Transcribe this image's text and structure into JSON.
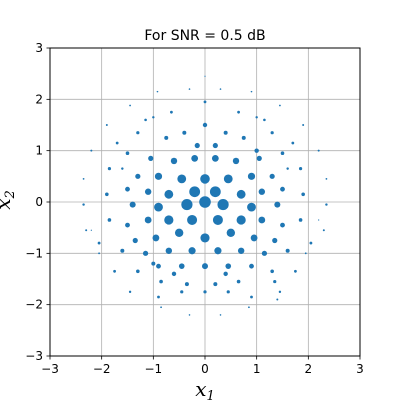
{
  "chart_data": {
    "type": "scatter",
    "title": "For SNR = 0.5 dB",
    "xlabel": "x",
    "xlabel_sub": "1",
    "ylabel": "x",
    "ylabel_sub": "2",
    "xlim": [
      -3,
      3
    ],
    "ylim": [
      -3,
      3
    ],
    "xticks": [
      -3,
      -2,
      -1,
      0,
      1,
      2,
      3
    ],
    "yticks": [
      -3,
      -2,
      -1,
      0,
      1,
      2,
      3
    ],
    "grid": true,
    "color": "#1f77b4",
    "points": [
      [
        0.0,
        2.45,
        0.6
      ],
      [
        -0.92,
        2.15,
        0.8
      ],
      [
        0.9,
        2.15,
        0.8
      ],
      [
        -1.45,
        1.88,
        0.9
      ],
      [
        1.45,
        1.88,
        0.9
      ],
      [
        -0.3,
        2.2,
        0.8
      ],
      [
        0.3,
        2.2,
        0.8
      ],
      [
        -1.9,
        1.5,
        1.0
      ],
      [
        1.9,
        1.5,
        1.0
      ],
      [
        -0.65,
        1.75,
        1.4
      ],
      [
        0.0,
        1.95,
        1.4
      ],
      [
        0.65,
        1.75,
        1.4
      ],
      [
        -1.15,
        1.6,
        1.3
      ],
      [
        1.15,
        1.6,
        1.3
      ],
      [
        -2.2,
        1.0,
        1.0
      ],
      [
        2.2,
        1.0,
        1.0
      ],
      [
        -1.7,
        1.15,
        1.4
      ],
      [
        1.7,
        1.15,
        1.4
      ],
      [
        -1.3,
        1.35,
        1.6
      ],
      [
        1.3,
        1.35,
        1.6
      ],
      [
        -1.0,
        1.65,
        1.2
      ],
      [
        1.0,
        1.65,
        1.2
      ],
      [
        -0.75,
        1.25,
        2.0
      ],
      [
        -0.4,
        1.35,
        2.0
      ],
      [
        0.0,
        1.5,
        2.2
      ],
      [
        0.4,
        1.35,
        2.0
      ],
      [
        0.75,
        1.25,
        2.0
      ],
      [
        -0.15,
        1.1,
        2.6
      ],
      [
        0.2,
        1.1,
        2.6
      ],
      [
        -2.35,
        0.45,
        0.9
      ],
      [
        2.35,
        0.45,
        0.9
      ],
      [
        -1.85,
        0.65,
        1.6
      ],
      [
        1.85,
        0.65,
        1.6
      ],
      [
        -1.5,
        0.95,
        1.8
      ],
      [
        1.5,
        0.95,
        1.8
      ],
      [
        -1.05,
        0.85,
        2.6
      ],
      [
        1.05,
        0.85,
        2.6
      ],
      [
        -0.6,
        0.8,
        3.2
      ],
      [
        -0.2,
        0.85,
        3.4
      ],
      [
        0.2,
        0.85,
        3.4
      ],
      [
        0.6,
        0.8,
        3.2
      ],
      [
        -0.9,
        0.5,
        3.6
      ],
      [
        -0.45,
        0.45,
        4.4
      ],
      [
        0.0,
        0.45,
        4.8
      ],
      [
        0.45,
        0.45,
        4.4
      ],
      [
        0.9,
        0.5,
        3.6
      ],
      [
        -1.3,
        0.5,
        2.6
      ],
      [
        1.3,
        0.5,
        2.6
      ],
      [
        1.0,
        1.0,
        2.2
      ],
      [
        -2.35,
        -0.05,
        1.2
      ],
      [
        2.35,
        -0.05,
        1.2
      ],
      [
        -1.9,
        0.15,
        1.8
      ],
      [
        1.9,
        0.15,
        1.8
      ],
      [
        -1.5,
        0.25,
        2.4
      ],
      [
        1.5,
        0.25,
        2.4
      ],
      [
        -1.1,
        0.2,
        3.2
      ],
      [
        1.1,
        0.2,
        3.2
      ],
      [
        -0.7,
        0.15,
        4.4
      ],
      [
        -0.2,
        0.2,
        5.4
      ],
      [
        0.2,
        0.2,
        5.4
      ],
      [
        0.7,
        0.15,
        4.4
      ],
      [
        -0.9,
        -0.1,
        4.4
      ],
      [
        -0.35,
        -0.05,
        5.6
      ],
      [
        0.0,
        0.0,
        5.8
      ],
      [
        0.35,
        -0.05,
        5.6
      ],
      [
        0.9,
        -0.1,
        4.4
      ],
      [
        1.4,
        -0.05,
        3.0
      ],
      [
        -1.4,
        -0.05,
        3.0
      ],
      [
        -2.3,
        -0.55,
        1.0
      ],
      [
        2.3,
        -0.55,
        1.0
      ],
      [
        -1.85,
        -0.35,
        1.8
      ],
      [
        1.85,
        -0.35,
        1.8
      ],
      [
        -1.5,
        -0.45,
        2.4
      ],
      [
        1.5,
        -0.45,
        2.4
      ],
      [
        -1.1,
        -0.35,
        3.4
      ],
      [
        1.1,
        -0.35,
        3.4
      ],
      [
        -0.7,
        -0.35,
        4.6
      ],
      [
        -0.25,
        -0.35,
        5.0
      ],
      [
        0.25,
        -0.35,
        5.0
      ],
      [
        0.7,
        -0.35,
        4.6
      ],
      [
        -0.5,
        -0.6,
        4.2
      ],
      [
        0.0,
        -0.7,
        4.6
      ],
      [
        0.5,
        -0.6,
        4.2
      ],
      [
        -0.95,
        -0.7,
        3.4
      ],
      [
        0.95,
        -0.7,
        3.4
      ],
      [
        -1.35,
        -0.75,
        2.6
      ],
      [
        1.35,
        -0.75,
        2.6
      ],
      [
        -2.05,
        -0.8,
        1.4
      ],
      [
        2.05,
        -0.8,
        1.4
      ],
      [
        -1.6,
        -0.95,
        2.0
      ],
      [
        1.6,
        -0.95,
        2.0
      ],
      [
        -1.15,
        -1.0,
        2.6
      ],
      [
        1.15,
        -1.0,
        2.6
      ],
      [
        -0.7,
        -0.95,
        3.2
      ],
      [
        -0.25,
        -0.95,
        3.6
      ],
      [
        0.25,
        -0.95,
        3.6
      ],
      [
        0.7,
        -0.95,
        3.2
      ],
      [
        -0.45,
        -1.25,
        2.8
      ],
      [
        0.0,
        -1.25,
        3.0
      ],
      [
        0.45,
        -1.25,
        2.8
      ],
      [
        -0.9,
        -1.25,
        2.4
      ],
      [
        0.9,
        -1.25,
        2.4
      ],
      [
        -2.05,
        -1.0,
        0.9
      ],
      [
        1.95,
        -1.0,
        0.9
      ],
      [
        -1.75,
        -1.35,
        1.4
      ],
      [
        1.75,
        -1.35,
        1.4
      ],
      [
        -1.3,
        -1.35,
        1.8
      ],
      [
        1.3,
        -1.35,
        1.8
      ],
      [
        -0.85,
        -1.55,
        1.8
      ],
      [
        -0.35,
        -1.6,
        2.0
      ],
      [
        0.2,
        -1.6,
        2.0
      ],
      [
        0.65,
        -1.55,
        1.8
      ],
      [
        -0.6,
        -1.4,
        2.2
      ],
      [
        0.4,
        -1.4,
        2.2
      ],
      [
        -1.45,
        -1.75,
        1.2
      ],
      [
        1.45,
        -1.75,
        1.2
      ],
      [
        -0.9,
        -1.85,
        1.4
      ],
      [
        -0.45,
        -1.75,
        1.6
      ],
      [
        0.0,
        -1.75,
        1.6
      ],
      [
        0.45,
        -1.75,
        1.6
      ],
      [
        0.9,
        -1.85,
        1.4
      ],
      [
        1.35,
        -1.55,
        1.6
      ],
      [
        -1.0,
        -1.2,
        2.0
      ],
      [
        1.4,
        -1.9,
        1.0
      ],
      [
        -0.85,
        -2.05,
        0.9
      ],
      [
        -0.3,
        -2.2,
        0.8
      ],
      [
        0.3,
        -2.2,
        0.8
      ],
      [
        0.85,
        -2.05,
        0.9
      ],
      [
        -2.2,
        -0.55,
        0.6
      ],
      [
        2.2,
        -0.35,
        0.6
      ],
      [
        -1.6,
        0.65,
        1.2
      ],
      [
        1.6,
        0.65,
        1.2
      ]
    ]
  }
}
